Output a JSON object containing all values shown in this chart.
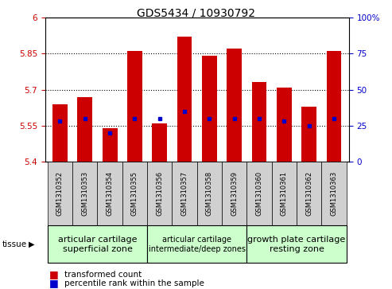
{
  "title": "GDS5434 / 10930792",
  "samples": [
    "GSM1310352",
    "GSM1310353",
    "GSM1310354",
    "GSM1310355",
    "GSM1310356",
    "GSM1310357",
    "GSM1310358",
    "GSM1310359",
    "GSM1310360",
    "GSM1310361",
    "GSM1310362",
    "GSM1310363"
  ],
  "transformed_count": [
    5.64,
    5.67,
    5.54,
    5.86,
    5.56,
    5.92,
    5.84,
    5.87,
    5.73,
    5.71,
    5.63,
    5.86
  ],
  "percentile_rank_pct": [
    28,
    30,
    20,
    30,
    30,
    35,
    30,
    30,
    30,
    28,
    25,
    30
  ],
  "ymin": 5.4,
  "ymax": 6.0,
  "yticks": [
    5.4,
    5.55,
    5.7,
    5.85,
    6.0
  ],
  "ytick_labels": [
    "5.4",
    "5.55",
    "5.7",
    "5.85",
    "6"
  ],
  "right_yticks": [
    0,
    25,
    50,
    75,
    100
  ],
  "right_ytick_labels": [
    "0",
    "25",
    "50",
    "75",
    "100%"
  ],
  "bar_color": "#cc0000",
  "percentile_color": "#0000cc",
  "bar_width": 0.6,
  "tissue_groups": [
    {
      "label": "articular cartilage\nsuperficial zone",
      "start": 0,
      "end": 3,
      "color": "#ccffcc",
      "fontsize": 8
    },
    {
      "label": "articular cartilage\nintermediate/deep zones",
      "start": 4,
      "end": 7,
      "color": "#ccffcc",
      "fontsize": 7
    },
    {
      "label": "growth plate cartilage\nresting zone",
      "start": 8,
      "end": 11,
      "color": "#ccffcc",
      "fontsize": 8
    }
  ],
  "grid_color": "black",
  "grid_linestyle": "dotted",
  "grid_linewidth": 0.8,
  "background_color": "#ffffff",
  "sample_box_color": "#d0d0d0",
  "title_fontsize": 10,
  "ytick_fontsize": 7.5,
  "xtick_fontsize": 6,
  "legend_fontsize": 7.5,
  "tissue_label": "tissue",
  "legend_items": [
    {
      "label": "transformed count",
      "color": "#cc0000"
    },
    {
      "label": "percentile rank within the sample",
      "color": "#0000cc"
    }
  ]
}
